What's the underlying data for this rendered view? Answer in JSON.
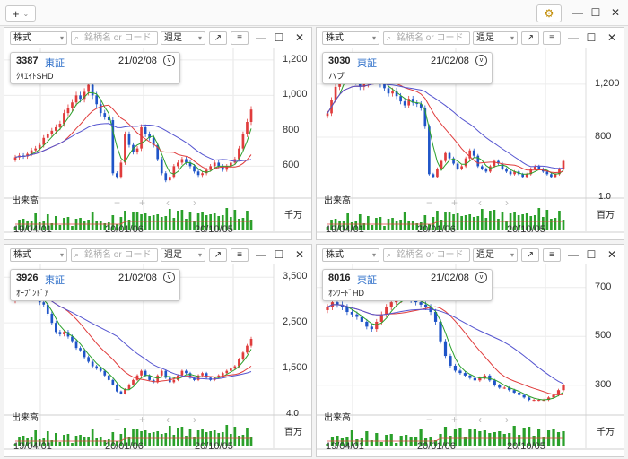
{
  "topbar": {
    "add_label": "+",
    "add_chevron": "⌄",
    "gear_glyph": "⚙",
    "minimize_glyph": "—",
    "maximize_glyph": "☐",
    "close_glyph": "✕"
  },
  "common": {
    "market_label": "株式",
    "search_placeholder": "銘柄名 or コード",
    "period_label": "週足",
    "volume_label": "出来高",
    "popout_glyph": "↗",
    "menu_glyph": "≡",
    "minimize_glyph": "—",
    "maximize_glyph": "☐",
    "close_glyph": "✕",
    "vol_minus": "−",
    "vol_plus": "+",
    "vol_left": "‹",
    "vol_right": "›",
    "x_ticks": [
      "19/04/01",
      "20/01/06",
      "20/10/05"
    ]
  },
  "colors": {
    "up": "#e03c3c",
    "down": "#1f55c8",
    "ma_short": "#2aa02a",
    "ma_mid": "#e03c3c",
    "ma_long": "#5555d0",
    "volume": "#2aa02a"
  },
  "panels": [
    {
      "code": "3387",
      "exchange": "東証",
      "date": "21/02/08",
      "name": "ｸﾘｴｲﾄSHD",
      "y_ticks": [
        "1,200",
        "1,000",
        "800",
        "600"
      ],
      "vol_ticks": [],
      "vol_unit": "千万",
      "chart_data": {
        "type": "candlestick",
        "ylim": [
          450,
          1250
        ],
        "y_ticks": [
          600,
          800,
          1000,
          1200
        ],
        "weekly_close": [
          650,
          660,
          655,
          670,
          690,
          700,
          720,
          760,
          780,
          800,
          820,
          840,
          900,
          930,
          960,
          1000,
          980,
          1020,
          1060,
          1000,
          950,
          900,
          880,
          860,
          560,
          540,
          620,
          780,
          720,
          680,
          700,
          820,
          780,
          760,
          720,
          640,
          560,
          520,
          540,
          600,
          620,
          640,
          620,
          600,
          570,
          550,
          560,
          580,
          600,
          620,
          600,
          580,
          600,
          620,
          640,
          700,
          780,
          850,
          920
        ]
      }
    },
    {
      "code": "3030",
      "exchange": "東証",
      "date": "21/02/08",
      "name": "ハブ",
      "y_ticks": [
        "1,200",
        "800"
      ],
      "vol_ticks": [
        "1.0"
      ],
      "vol_unit": "百万",
      "chart_data": {
        "type": "candlestick",
        "ylim": [
          380,
          1450
        ],
        "y_ticks": [
          800,
          1200
        ],
        "weekly_close": [
          980,
          1080,
          1180,
          1250,
          1280,
          1230,
          1260,
          1220,
          1180,
          1200,
          1260,
          1290,
          1240,
          1200,
          1170,
          1130,
          1150,
          1110,
          1070,
          1040,
          1090,
          1060,
          1050,
          1020,
          880,
          520,
          500,
          560,
          620,
          680,
          640,
          600,
          560,
          580,
          640,
          700,
          660,
          580,
          560,
          540,
          580,
          620,
          600,
          560,
          540,
          520,
          540,
          520,
          500,
          520,
          560,
          580,
          560,
          540,
          520,
          500,
          520,
          560,
          620
        ]
      }
    },
    {
      "code": "3926",
      "exchange": "東証",
      "date": "21/02/08",
      "name": "ｵｰﾌﾟﾝﾄﾞｱ",
      "y_ticks": [
        "3,500",
        "2,500",
        "1,500"
      ],
      "vol_ticks": [
        "4.0"
      ],
      "vol_unit": "百万",
      "chart_data": {
        "type": "candlestick",
        "ylim": [
          600,
          3700
        ],
        "y_ticks": [
          1500,
          2500,
          3500
        ],
        "weekly_close": [
          3050,
          3150,
          3100,
          3200,
          3150,
          3050,
          2950,
          2900,
          2700,
          2500,
          2300,
          2250,
          2300,
          2200,
          2100,
          1950,
          1900,
          1750,
          1650,
          1550,
          1500,
          1450,
          1350,
          1250,
          1150,
          1000,
          950,
          1050,
          1150,
          1250,
          1350,
          1450,
          1350,
          1250,
          1200,
          1350,
          1450,
          1300,
          1200,
          1250,
          1350,
          1450,
          1400,
          1300,
          1250,
          1350,
          1400,
          1300,
          1250,
          1300,
          1350,
          1400,
          1450,
          1500,
          1550,
          1700,
          1850,
          2000,
          2150
        ]
      }
    },
    {
      "code": "8016",
      "exchange": "東証",
      "date": "21/02/08",
      "name": "ｵﾝﾜｰﾄﾞHD",
      "y_ticks": [
        "700",
        "500",
        "300"
      ],
      "vol_ticks": [],
      "vol_unit": "千万",
      "chart_data": {
        "type": "candlestick",
        "ylim": [
          200,
          780
        ],
        "y_ticks": [
          300,
          500,
          700
        ],
        "weekly_close": [
          620,
          640,
          630,
          620,
          600,
          590,
          580,
          560,
          540,
          530,
          560,
          590,
          620,
          640,
          650,
          660,
          660,
          650,
          640,
          630,
          620,
          600,
          560,
          480,
          420,
          380,
          360,
          350,
          340,
          330,
          320,
          330,
          340,
          320,
          300,
          290,
          290,
          280,
          270,
          260,
          250,
          240,
          240,
          240,
          240,
          250,
          260,
          280,
          300
        ]
      }
    }
  ]
}
